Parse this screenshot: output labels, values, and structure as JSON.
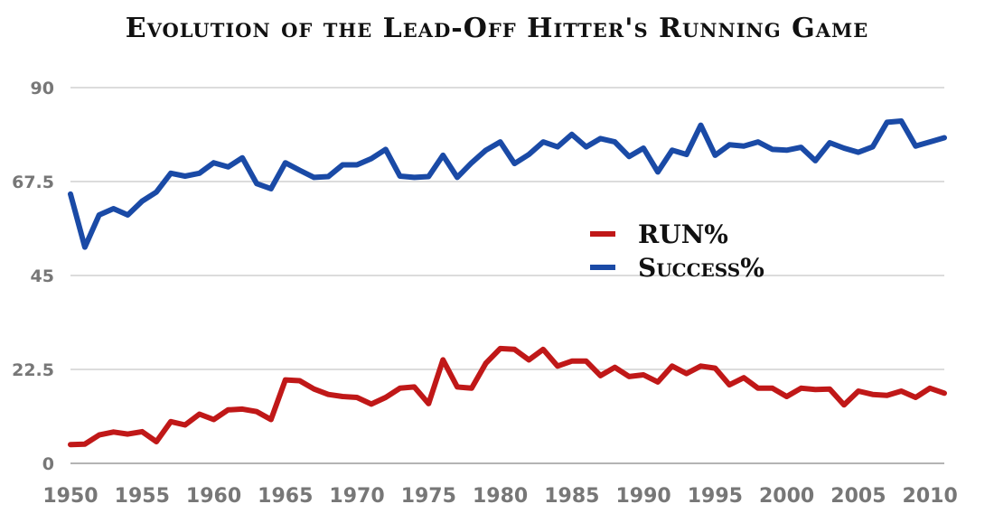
{
  "chart_data": {
    "type": "line",
    "title": "Evolution of the Lead-Off Hitter's Running Game",
    "xlabel": "",
    "ylabel": "",
    "ylim": [
      0,
      90
    ],
    "xlim": [
      1950,
      2011
    ],
    "yticks": [
      "0",
      "22.5",
      "45",
      "67.5",
      "90"
    ],
    "xticks": [
      "1950",
      "1955",
      "1960",
      "1965",
      "1970",
      "1975",
      "1980",
      "1985",
      "1990",
      "1995",
      "2000",
      "2005",
      "2010"
    ],
    "grid": true,
    "legend_position": "center-right",
    "x": [
      1950,
      1951,
      1952,
      1953,
      1954,
      1955,
      1956,
      1957,
      1958,
      1959,
      1960,
      1961,
      1962,
      1963,
      1964,
      1965,
      1966,
      1967,
      1968,
      1969,
      1970,
      1971,
      1972,
      1973,
      1974,
      1975,
      1976,
      1977,
      1978,
      1979,
      1980,
      1981,
      1982,
      1983,
      1984,
      1985,
      1986,
      1987,
      1988,
      1989,
      1990,
      1991,
      1992,
      1993,
      1994,
      1995,
      1996,
      1997,
      1998,
      1999,
      2000,
      2001,
      2002,
      2003,
      2004,
      2005,
      2006,
      2007,
      2008,
      2009,
      2010,
      2011
    ],
    "series": [
      {
        "name": "RUN%",
        "color": "#c01818",
        "values": [
          4.5,
          4.6,
          6.8,
          7.5,
          7.0,
          7.6,
          5.2,
          10.0,
          9.2,
          11.8,
          10.5,
          12.8,
          13.0,
          12.4,
          10.5,
          20.0,
          19.8,
          17.8,
          16.5,
          16.0,
          15.8,
          14.2,
          15.8,
          18.0,
          18.3,
          14.3,
          24.8,
          18.3,
          18.0,
          24.0,
          27.5,
          27.3,
          24.8,
          27.3,
          23.3,
          24.5,
          24.5,
          21.0,
          23.0,
          20.8,
          21.2,
          19.5,
          23.3,
          21.5,
          23.3,
          22.8,
          18.8,
          20.5,
          18.0,
          18.0,
          16.0,
          18.0,
          17.7,
          17.8,
          14.0,
          17.3,
          16.5,
          16.3,
          17.3,
          15.8,
          18.0,
          16.8
        ]
      },
      {
        "name": "Success%",
        "color": "#1a4aa6",
        "values": [
          64.5,
          51.8,
          59.5,
          61.0,
          59.5,
          62.8,
          65.0,
          69.5,
          68.8,
          69.5,
          72.0,
          71.0,
          73.2,
          67.0,
          65.8,
          72.0,
          70.2,
          68.5,
          68.7,
          71.5,
          71.5,
          73.0,
          75.2,
          68.8,
          68.5,
          68.7,
          73.8,
          68.5,
          72.0,
          75.0,
          77.0,
          71.8,
          74.0,
          77.0,
          75.8,
          78.8,
          75.8,
          77.8,
          77.0,
          73.5,
          75.5,
          69.8,
          75.0,
          74.0,
          81.0,
          73.8,
          76.3,
          76.0,
          77.0,
          75.2,
          75.0,
          75.7,
          72.5,
          76.8,
          75.5,
          74.5,
          75.8,
          81.7,
          82.0,
          76.0,
          77.0,
          78.0
        ]
      }
    ]
  }
}
